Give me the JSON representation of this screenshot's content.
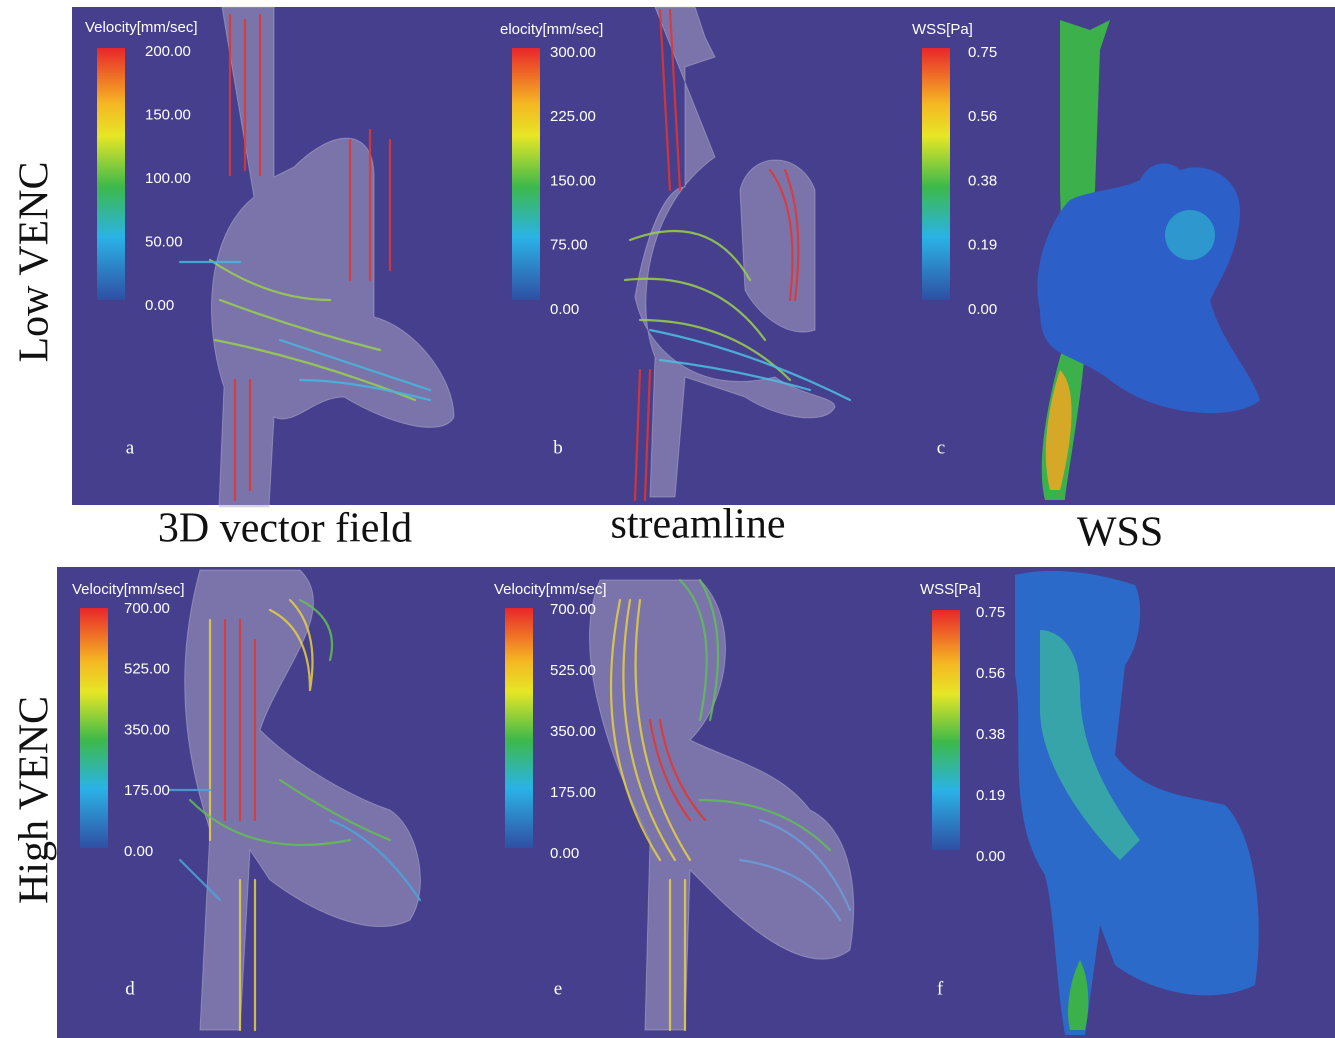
{
  "row_labels": [
    "Low VENC",
    "High VENC"
  ],
  "column_labels": [
    "3D vector field",
    "streamline",
    "WSS"
  ],
  "panels": [
    {
      "letter": "a",
      "colorbar_title": "Velocity[mm/sec]",
      "colorbar_ticks": [
        "200.00",
        "150.00",
        "100.00",
        "50.00",
        "0.00"
      ]
    },
    {
      "letter": "b",
      "colorbar_title": "elocity[mm/sec]",
      "colorbar_ticks": [
        "300.00",
        "225.00",
        "150.00",
        "75.00",
        "0.00"
      ]
    },
    {
      "letter": "c",
      "colorbar_title": "WSS[Pa]",
      "colorbar_ticks": [
        "0.75",
        "0.56",
        "0.38",
        "0.19",
        "0.00"
      ]
    },
    {
      "letter": "d",
      "colorbar_title": "Velocity[mm/sec]",
      "colorbar_ticks": [
        "700.00",
        "525.00",
        "350.00",
        "175.00",
        "0.00"
      ]
    },
    {
      "letter": "e",
      "colorbar_title": "Velocity[mm/sec]",
      "colorbar_ticks": [
        "700.00",
        "525.00",
        "350.00",
        "175.00",
        "0.00"
      ]
    },
    {
      "letter": "f",
      "colorbar_title": "WSS[Pa]",
      "colorbar_ticks": [
        "0.75",
        "0.56",
        "0.38",
        "0.19",
        "0.00"
      ]
    }
  ]
}
